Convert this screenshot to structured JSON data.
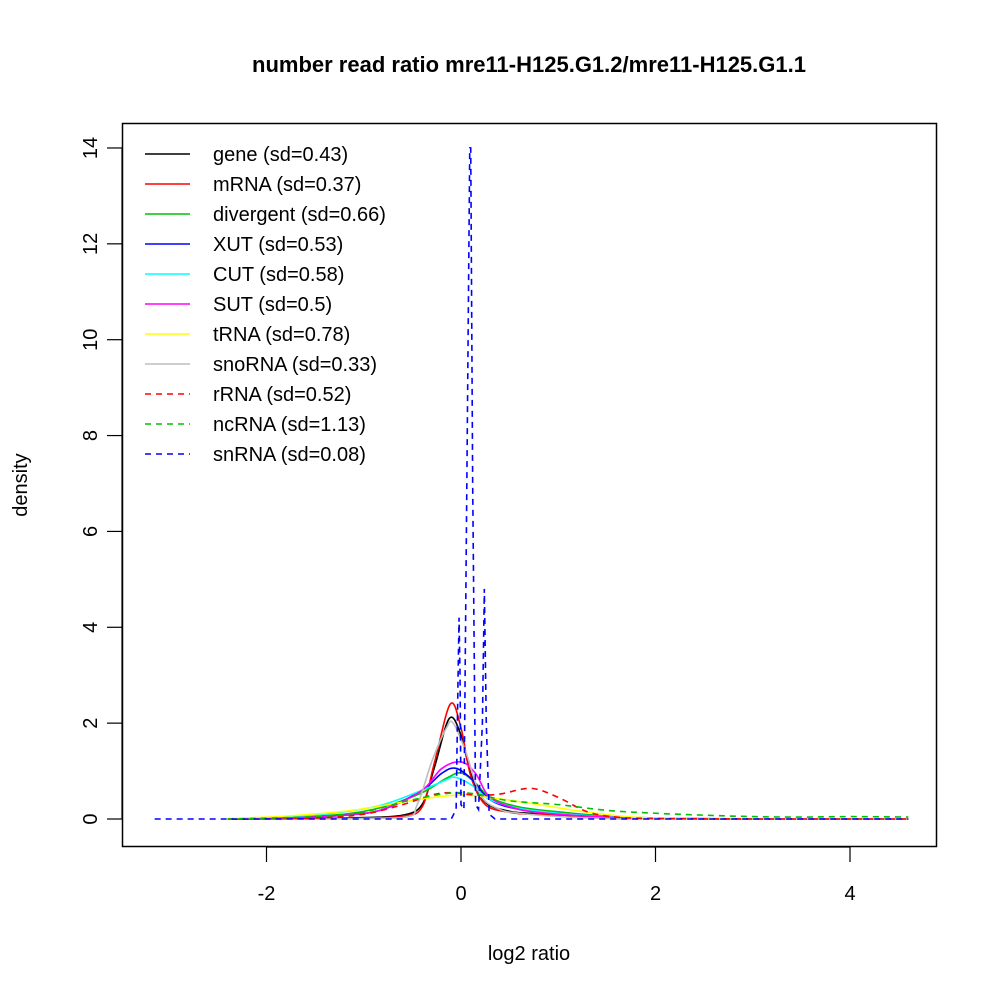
{
  "chart_data": {
    "type": "line",
    "title": "number read ratio mre11-H125.G1.2/mre11-H125.G1.1",
    "xlabel": "log2 ratio",
    "ylabel": "density",
    "xlim": [
      -3.4,
      4.9
    ],
    "ylim": [
      -0.6,
      14.5
    ],
    "xticks": [
      "-2",
      "0",
      "2",
      "4"
    ],
    "xtick_values": [
      -2,
      0,
      2,
      4
    ],
    "yticks": [
      "0",
      "2",
      "4",
      "6",
      "8",
      "10",
      "12",
      "14"
    ],
    "ytick_values": [
      0,
      2,
      4,
      6,
      8,
      10,
      12,
      14
    ],
    "legend_position": "top-left",
    "series": [
      {
        "name": "gene (sd=0.43)",
        "color": "#000000",
        "dash": false,
        "points": [
          [
            -2.4,
            0
          ],
          [
            -1.5,
            0.01
          ],
          [
            -1,
            0.03
          ],
          [
            -0.6,
            0.08
          ],
          [
            -0.4,
            0.3
          ],
          [
            -0.27,
            1.1
          ],
          [
            -0.12,
            2.1
          ],
          [
            0,
            1.75
          ],
          [
            0.1,
            0.95
          ],
          [
            0.25,
            0.35
          ],
          [
            0.5,
            0.16
          ],
          [
            0.7,
            0.12
          ],
          [
            1,
            0.09
          ],
          [
            1.5,
            0.04
          ],
          [
            2,
            0.01
          ],
          [
            3,
            0
          ],
          [
            4.6,
            0
          ]
        ]
      },
      {
        "name": "mRNA (sd=0.37)",
        "color": "#ff0000",
        "dash": false,
        "points": [
          [
            -2.4,
            0
          ],
          [
            -1.5,
            0.01
          ],
          [
            -1,
            0.02
          ],
          [
            -0.6,
            0.06
          ],
          [
            -0.4,
            0.25
          ],
          [
            -0.27,
            1.2
          ],
          [
            -0.11,
            2.4
          ],
          [
            0,
            1.9
          ],
          [
            0.1,
            0.9
          ],
          [
            0.25,
            0.3
          ],
          [
            0.5,
            0.14
          ],
          [
            0.7,
            0.1
          ],
          [
            1,
            0.08
          ],
          [
            1.5,
            0.03
          ],
          [
            2,
            0.01
          ],
          [
            3,
            0
          ],
          [
            4.6,
            0
          ]
        ]
      },
      {
        "name": "divergent (sd=0.66)",
        "color": "#00c000",
        "dash": false,
        "points": [
          [
            -2.4,
            0
          ],
          [
            -1.8,
            0.03
          ],
          [
            -1.2,
            0.1
          ],
          [
            -0.8,
            0.25
          ],
          [
            -0.4,
            0.55
          ],
          [
            -0.15,
            0.85
          ],
          [
            0,
            0.96
          ],
          [
            0.15,
            0.75
          ],
          [
            0.3,
            0.45
          ],
          [
            0.6,
            0.25
          ],
          [
            1,
            0.15
          ],
          [
            1.5,
            0.06
          ],
          [
            2,
            0.02
          ],
          [
            3,
            0
          ],
          [
            4.6,
            0
          ]
        ]
      },
      {
        "name": "XUT (sd=0.53)",
        "color": "#0000ff",
        "dash": false,
        "points": [
          [
            -2.4,
            0
          ],
          [
            -1.8,
            0.02
          ],
          [
            -1.2,
            0.08
          ],
          [
            -0.8,
            0.2
          ],
          [
            -0.4,
            0.6
          ],
          [
            -0.2,
            0.95
          ],
          [
            -0.06,
            1.06
          ],
          [
            0.1,
            0.85
          ],
          [
            0.3,
            0.4
          ],
          [
            0.6,
            0.2
          ],
          [
            1,
            0.12
          ],
          [
            1.5,
            0.05
          ],
          [
            2,
            0.01
          ],
          [
            3,
            0
          ],
          [
            4.6,
            0
          ]
        ]
      },
      {
        "name": "CUT (sd=0.58)",
        "color": "#00ffff",
        "dash": false,
        "points": [
          [
            -2.4,
            0
          ],
          [
            -1.8,
            0.04
          ],
          [
            -1.2,
            0.15
          ],
          [
            -0.8,
            0.3
          ],
          [
            -0.4,
            0.6
          ],
          [
            -0.15,
            0.82
          ],
          [
            -0.06,
            0.87
          ],
          [
            0.1,
            0.72
          ],
          [
            0.3,
            0.4
          ],
          [
            0.6,
            0.22
          ],
          [
            1,
            0.12
          ],
          [
            1.5,
            0.05
          ],
          [
            2,
            0.01
          ],
          [
            3,
            0
          ],
          [
            4.6,
            0
          ]
        ]
      },
      {
        "name": "SUT (sd=0.5)",
        "color": "#ff00ff",
        "dash": false,
        "points": [
          [
            -2.4,
            0
          ],
          [
            -1.8,
            0.02
          ],
          [
            -1.2,
            0.08
          ],
          [
            -0.8,
            0.2
          ],
          [
            -0.4,
            0.6
          ],
          [
            -0.2,
            1.05
          ],
          [
            0,
            1.19
          ],
          [
            0.15,
            0.95
          ],
          [
            0.3,
            0.45
          ],
          [
            0.6,
            0.2
          ],
          [
            1,
            0.1
          ],
          [
            1.5,
            0.04
          ],
          [
            2,
            0.01
          ],
          [
            3,
            0
          ],
          [
            4.6,
            0
          ]
        ]
      },
      {
        "name": "tRNA (sd=0.78)",
        "color": "#ffff00",
        "dash": false,
        "points": [
          [
            -2.4,
            0.01
          ],
          [
            -1.8,
            0.06
          ],
          [
            -1.2,
            0.16
          ],
          [
            -0.8,
            0.28
          ],
          [
            -0.4,
            0.42
          ],
          [
            0,
            0.5
          ],
          [
            0.4,
            0.42
          ],
          [
            0.8,
            0.3
          ],
          [
            1.2,
            0.17
          ],
          [
            1.6,
            0.07
          ],
          [
            2,
            0.02
          ],
          [
            3,
            0
          ],
          [
            4.6,
            0
          ]
        ]
      },
      {
        "name": "snoRNA (sd=0.33)",
        "color": "#bebebe",
        "dash": false,
        "points": [
          [
            -1.5,
            0
          ],
          [
            -0.6,
            0.03
          ],
          [
            -0.45,
            0.3
          ],
          [
            -0.3,
            1.2
          ],
          [
            -0.15,
            1.9
          ],
          [
            -0.08,
            2.0
          ],
          [
            0.05,
            1.4
          ],
          [
            0.2,
            0.5
          ],
          [
            0.4,
            0.2
          ],
          [
            0.6,
            0.12
          ],
          [
            1,
            0.05
          ],
          [
            1.5,
            0.01
          ],
          [
            2,
            0
          ],
          [
            4.6,
            0
          ]
        ]
      },
      {
        "name": "rRNA (sd=0.52)",
        "color": "#ff0000",
        "dash": true,
        "points": [
          [
            -2.4,
            0
          ],
          [
            -1.5,
            0.02
          ],
          [
            -1,
            0.1
          ],
          [
            -0.6,
            0.3
          ],
          [
            -0.3,
            0.5
          ],
          [
            -0.1,
            0.55
          ],
          [
            0.15,
            0.5
          ],
          [
            0.4,
            0.52
          ],
          [
            0.72,
            0.64
          ],
          [
            1,
            0.45
          ],
          [
            1.3,
            0.15
          ],
          [
            1.6,
            0.04
          ],
          [
            2,
            0.01
          ],
          [
            3,
            0
          ],
          [
            4.6,
            0
          ]
        ]
      },
      {
        "name": "ncRNA (sd=1.13)",
        "color": "#00c000",
        "dash": true,
        "points": [
          [
            -2.4,
            0
          ],
          [
            -1.5,
            0.05
          ],
          [
            -1,
            0.15
          ],
          [
            -0.5,
            0.4
          ],
          [
            0,
            0.55
          ],
          [
            0.5,
            0.38
          ],
          [
            1,
            0.3
          ],
          [
            1.5,
            0.18
          ],
          [
            2,
            0.12
          ],
          [
            2.5,
            0.08
          ],
          [
            3,
            0.05
          ],
          [
            3.5,
            0.04
          ],
          [
            4,
            0.05
          ],
          [
            4.6,
            0.04
          ]
        ]
      },
      {
        "name": "snRNA (sd=0.08)",
        "color": "#0000ff",
        "dash": true,
        "points": [
          [
            -3.15,
            0
          ],
          [
            -0.1,
            0
          ],
          [
            -0.05,
            0.2
          ],
          [
            -0.03,
            3
          ],
          [
            -0.02,
            4.2
          ],
          [
            -0.01,
            3
          ],
          [
            0.0,
            0.3
          ],
          [
            0.03,
            0.2
          ],
          [
            0.06,
            7
          ],
          [
            0.09,
            14
          ],
          [
            0.1,
            14
          ],
          [
            0.12,
            7
          ],
          [
            0.15,
            0.3
          ],
          [
            0.18,
            0.2
          ],
          [
            0.22,
            2
          ],
          [
            0.24,
            4.8
          ],
          [
            0.26,
            2
          ],
          [
            0.29,
            0.1
          ],
          [
            0.35,
            0
          ],
          [
            4.6,
            0
          ]
        ]
      }
    ]
  }
}
